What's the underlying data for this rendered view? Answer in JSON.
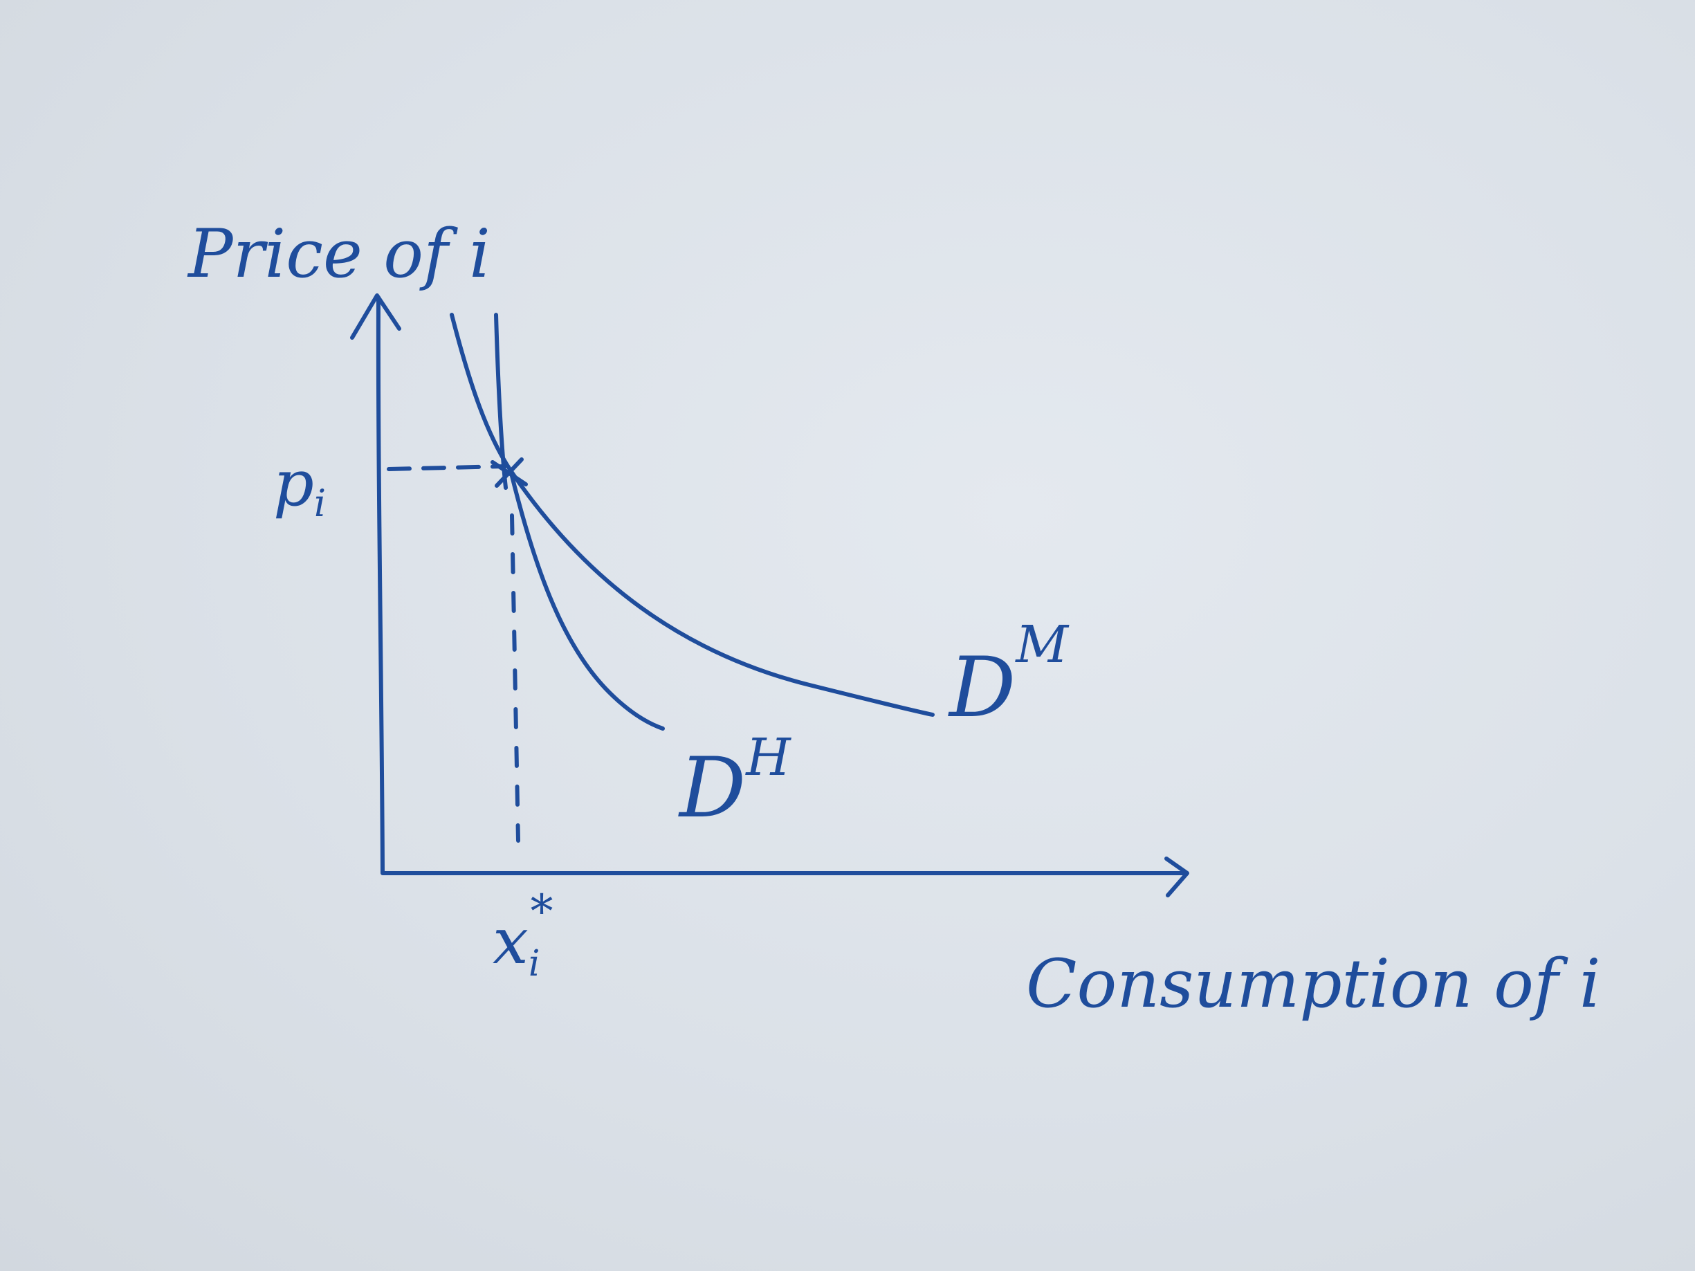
{
  "ink_color": "#1f4d9c",
  "labels": {
    "y_axis": "Price of i",
    "x_axis": "Consumption of i",
    "price_level": "p",
    "price_sub": "i",
    "quantity_level": "x",
    "quantity_sub": "i",
    "quantity_sup": "*"
  },
  "curves": {
    "marshallian": {
      "letter": "D",
      "sup": "M"
    },
    "hicksian": {
      "letter": "D",
      "sup": "H"
    }
  }
}
